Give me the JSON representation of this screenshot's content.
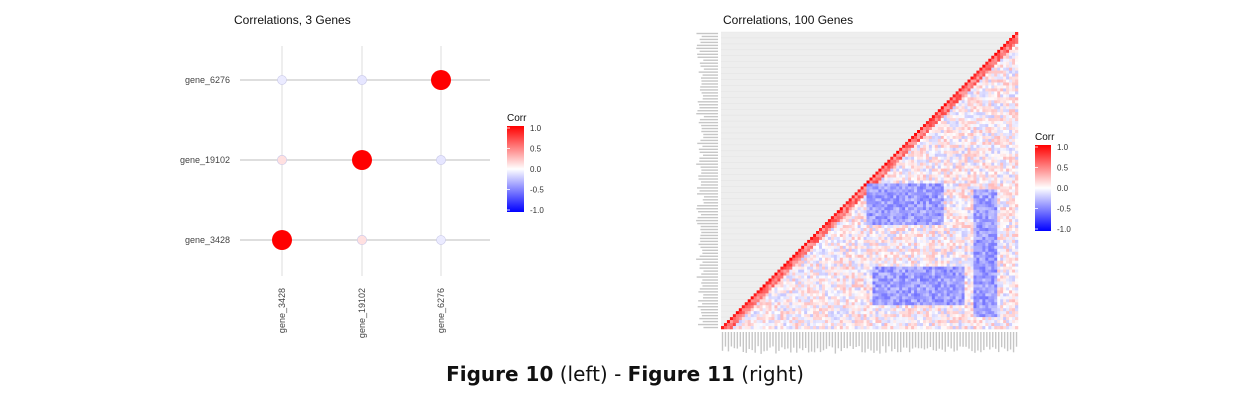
{
  "chart_data": [
    {
      "type": "scatter",
      "title": "Correlations, 3 Genes",
      "x_labels": [
        "gene_3428",
        "gene_19102",
        "gene_6276"
      ],
      "y_labels": [
        "gene_6276",
        "gene_19102",
        "gene_3428"
      ],
      "matrix_labels": [
        "gene_3428",
        "gene_19102",
        "gene_6276"
      ],
      "corr": [
        [
          1.0,
          0.12,
          -0.08
        ],
        [
          0.12,
          1.0,
          -0.1
        ],
        [
          -0.08,
          -0.1,
          1.0
        ]
      ],
      "legend": {
        "title": "Corr",
        "ticks": [
          "1.0",
          "0.5",
          "0.0",
          "-0.5",
          "-1.0"
        ],
        "range": [
          -1,
          1
        ]
      }
    },
    {
      "type": "heatmap",
      "title": "Correlations, 100 Genes",
      "n_genes": 100,
      "lower_triangle_only": true,
      "value_range": [
        -1,
        1
      ],
      "legend": {
        "title": "Corr",
        "ticks": [
          "1.0",
          "0.5",
          "0.0",
          "-0.5",
          "-1.0"
        ],
        "range": [
          -1,
          1
        ]
      }
    }
  ],
  "caption": {
    "fig10": "Figure 10",
    "left": " (left) - ",
    "fig11": "Figure 11",
    "right": " (right)"
  },
  "colors": {
    "high": "#ff0000",
    "mid": "#ffffff",
    "low": "#0000ff",
    "grid": "#d9d9d9"
  }
}
